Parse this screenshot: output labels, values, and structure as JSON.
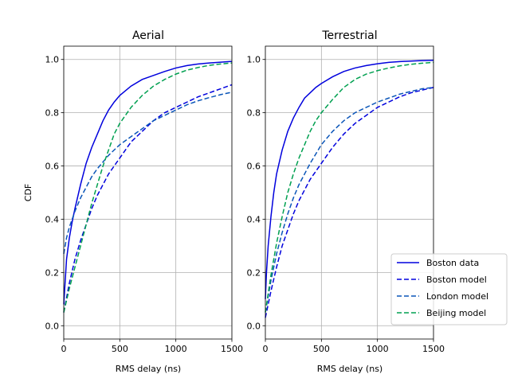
{
  "chart_data": [
    {
      "type": "line",
      "title": "Aerial",
      "xlabel": "RMS delay (ns)",
      "ylabel": "CDF",
      "xlim": [
        0,
        1500
      ],
      "ylim": [
        -0.05,
        1.05
      ],
      "xticks": [
        0,
        500,
        1000,
        1500
      ],
      "yticks": [
        0.0,
        0.2,
        0.4,
        0.6,
        0.8,
        1.0
      ],
      "xtick_labels": [
        "0",
        "500",
        "1000",
        "1500"
      ],
      "ytick_labels": [
        "0.0",
        "0.2",
        "0.4",
        "0.6",
        "0.8",
        "1.0"
      ],
      "grid": true,
      "series": [
        {
          "name": "Boston data",
          "color": "#0000dd",
          "dash": "solid",
          "x": [
            0,
            25,
            50,
            75,
            100,
            150,
            200,
            250,
            300,
            350,
            400,
            450,
            500,
            600,
            700,
            800,
            900,
            1000,
            1100,
            1200,
            1300,
            1400,
            1500
          ],
          "y": [
            0.08,
            0.25,
            0.33,
            0.39,
            0.44,
            0.53,
            0.61,
            0.67,
            0.72,
            0.77,
            0.81,
            0.84,
            0.865,
            0.9,
            0.925,
            0.94,
            0.955,
            0.968,
            0.977,
            0.983,
            0.987,
            0.99,
            0.993
          ]
        },
        {
          "name": "Boston model",
          "color": "#0000dd",
          "dash": "dashed",
          "x": [
            0,
            50,
            100,
            150,
            200,
            250,
            300,
            350,
            400,
            500,
            600,
            700,
            800,
            900,
            1000,
            1100,
            1200,
            1300,
            1400,
            1500
          ],
          "y": [
            0.05,
            0.16,
            0.25,
            0.32,
            0.38,
            0.44,
            0.49,
            0.53,
            0.57,
            0.63,
            0.69,
            0.73,
            0.77,
            0.8,
            0.82,
            0.84,
            0.86,
            0.875,
            0.89,
            0.905
          ]
        },
        {
          "name": "London model",
          "color": "#0a55b8",
          "dash": "dashed",
          "x": [
            0,
            25,
            50,
            100,
            150,
            200,
            250,
            300,
            400,
            500,
            600,
            700,
            800,
            900,
            1000,
            1100,
            1200,
            1300,
            1400,
            1500
          ],
          "y": [
            0.27,
            0.33,
            0.37,
            0.43,
            0.48,
            0.52,
            0.56,
            0.59,
            0.64,
            0.68,
            0.71,
            0.74,
            0.77,
            0.79,
            0.81,
            0.83,
            0.845,
            0.857,
            0.868,
            0.877
          ]
        },
        {
          "name": "Beijing model",
          "color": "#00a050",
          "dash": "dashed",
          "x": [
            0,
            50,
            100,
            150,
            200,
            250,
            300,
            350,
            400,
            450,
            500,
            600,
            700,
            800,
            900,
            1000,
            1100,
            1200,
            1300,
            1400,
            1500
          ],
          "y": [
            0.05,
            0.14,
            0.22,
            0.3,
            0.38,
            0.46,
            0.53,
            0.6,
            0.66,
            0.72,
            0.76,
            0.82,
            0.865,
            0.9,
            0.925,
            0.945,
            0.96,
            0.97,
            0.978,
            0.983,
            0.987
          ]
        }
      ]
    },
    {
      "type": "line",
      "title": "Terrestrial",
      "xlabel": "RMS delay (ns)",
      "ylabel": "",
      "xlim": [
        0,
        1500
      ],
      "ylim": [
        -0.05,
        1.05
      ],
      "xticks": [
        0,
        500,
        1000,
        1500
      ],
      "yticks": [
        0.0,
        0.2,
        0.4,
        0.6,
        0.8,
        1.0
      ],
      "xtick_labels": [
        "0",
        "500",
        "1000",
        "1500"
      ],
      "ytick_labels": [
        "0.0",
        "0.2",
        "0.4",
        "0.6",
        "0.8",
        "1.0"
      ],
      "grid": true,
      "series": [
        {
          "name": "Boston data",
          "color": "#0000dd",
          "dash": "solid",
          "x": [
            0,
            10,
            25,
            50,
            75,
            100,
            150,
            200,
            250,
            300,
            350,
            400,
            450,
            500,
            600,
            700,
            800,
            900,
            1000,
            1100,
            1200,
            1300,
            1400,
            1500
          ],
          "y": [
            0.1,
            0.2,
            0.3,
            0.41,
            0.5,
            0.57,
            0.66,
            0.73,
            0.78,
            0.82,
            0.855,
            0.875,
            0.895,
            0.91,
            0.935,
            0.955,
            0.968,
            0.977,
            0.984,
            0.989,
            0.992,
            0.994,
            0.996,
            0.997
          ]
        },
        {
          "name": "Boston model",
          "color": "#0000dd",
          "dash": "dashed",
          "x": [
            0,
            50,
            100,
            150,
            200,
            250,
            300,
            350,
            400,
            500,
            600,
            700,
            800,
            900,
            1000,
            1100,
            1200,
            1300,
            1400,
            1500
          ],
          "y": [
            0.03,
            0.13,
            0.22,
            0.3,
            0.36,
            0.42,
            0.47,
            0.51,
            0.55,
            0.61,
            0.67,
            0.72,
            0.76,
            0.79,
            0.82,
            0.84,
            0.86,
            0.875,
            0.885,
            0.895
          ]
        },
        {
          "name": "London model",
          "color": "#0a55b8",
          "dash": "dashed",
          "x": [
            0,
            50,
            100,
            150,
            200,
            250,
            300,
            350,
            400,
            500,
            600,
            700,
            800,
            900,
            1000,
            1100,
            1200,
            1300,
            1400,
            1500
          ],
          "y": [
            0.05,
            0.17,
            0.27,
            0.35,
            0.42,
            0.48,
            0.53,
            0.57,
            0.61,
            0.68,
            0.73,
            0.77,
            0.8,
            0.82,
            0.84,
            0.855,
            0.87,
            0.88,
            0.89,
            0.895
          ]
        },
        {
          "name": "Beijing model",
          "color": "#00a050",
          "dash": "dashed",
          "x": [
            0,
            50,
            100,
            150,
            200,
            250,
            300,
            350,
            400,
            450,
            500,
            600,
            700,
            800,
            900,
            1000,
            1100,
            1200,
            1300,
            1400,
            1500
          ],
          "y": [
            0.05,
            0.19,
            0.31,
            0.41,
            0.5,
            0.57,
            0.63,
            0.68,
            0.73,
            0.77,
            0.8,
            0.85,
            0.895,
            0.925,
            0.945,
            0.958,
            0.968,
            0.976,
            0.982,
            0.986,
            0.989
          ]
        }
      ]
    }
  ],
  "legend": {
    "placement": "lower-right",
    "entries": [
      "Boston data",
      "Boston model",
      "London model",
      "Beijing model"
    ]
  }
}
